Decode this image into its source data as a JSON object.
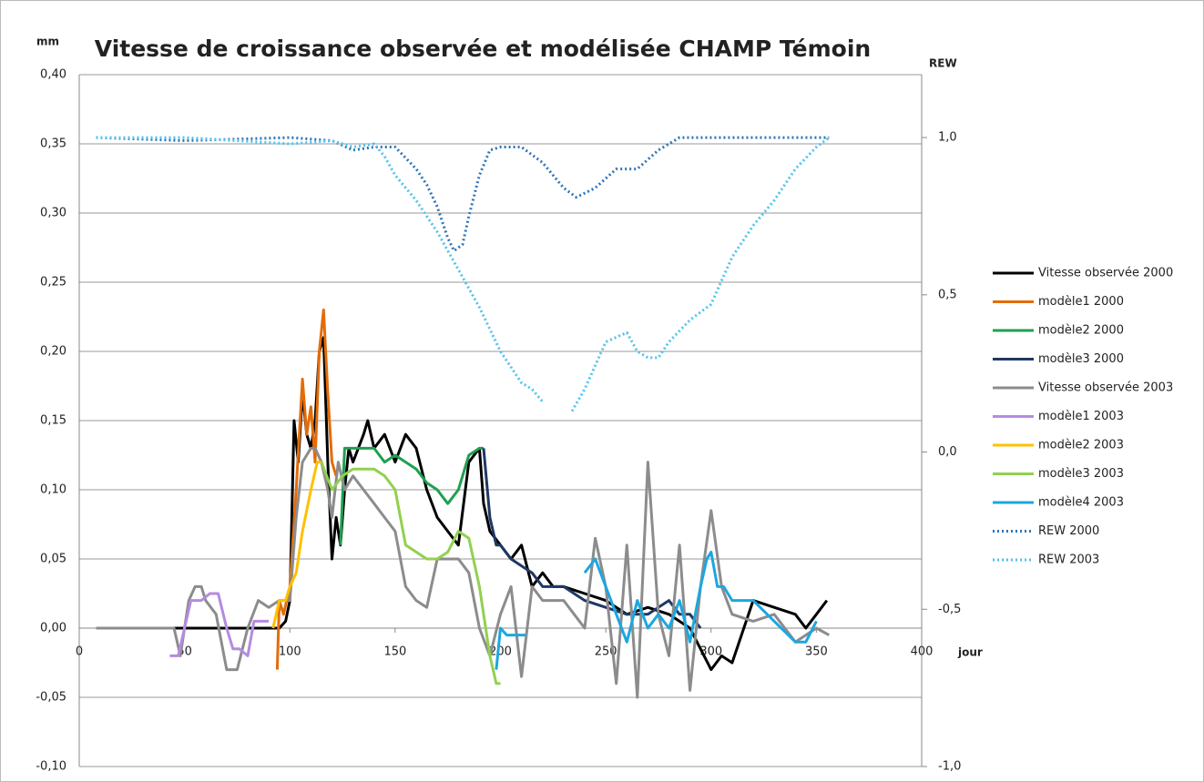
{
  "chart_data": {
    "type": "line",
    "title": "Vitesse de croissance observée et modélisée CHAMP Témoin",
    "y_label": "mm",
    "y2_label": "REW",
    "x_label": "jour",
    "xlim": [
      0,
      400
    ],
    "xticks": [
      0,
      50,
      100,
      150,
      200,
      250,
      300,
      350,
      400
    ],
    "ylim": [
      -0.1,
      0.4
    ],
    "yticks": [
      {
        "value": -0.1,
        "label": "-0,10"
      },
      {
        "value": -0.05,
        "label": "-0,05"
      },
      {
        "value": 0,
        "label": "0,00"
      },
      {
        "value": 0.05,
        "label": "0,05"
      },
      {
        "value": 0.1,
        "label": "0,10"
      },
      {
        "value": 0.15,
        "label": "0,15"
      },
      {
        "value": 0.2,
        "label": "0,20"
      },
      {
        "value": 0.25,
        "label": "0,25"
      },
      {
        "value": 0.3,
        "label": "0,30"
      },
      {
        "value": 0.35,
        "label": "0,35"
      },
      {
        "value": 0.4,
        "label": "0,40"
      }
    ],
    "y2lim": [
      -1,
      1.2
    ],
    "y2ticks": [
      {
        "value": -1,
        "label": "-1,0"
      },
      {
        "value": -0.5,
        "label": "-0,5"
      },
      {
        "value": 0,
        "label": "0,0"
      },
      {
        "value": 0.5,
        "label": "0,5"
      },
      {
        "value": 1,
        "label": "1,0"
      }
    ],
    "grid": true,
    "legend": "right",
    "series": [
      {
        "name": "Vitesse observée 2000",
        "color": "#000000",
        "x": [
          8,
          40,
          60,
          90,
          95,
          98,
          100,
          102,
          104,
          106,
          108,
          110,
          112,
          114,
          116,
          118,
          120,
          122,
          124,
          126,
          128,
          130,
          135,
          137,
          140,
          145,
          150,
          155,
          160,
          165,
          170,
          175,
          180,
          185,
          190,
          192,
          195,
          200,
          205,
          210,
          215,
          220,
          225,
          230,
          240,
          250,
          260,
          270,
          280,
          290,
          300,
          305,
          310,
          320,
          330,
          340,
          345,
          350,
          355
        ],
        "values": [
          0,
          0,
          0,
          0,
          0,
          0.005,
          0.02,
          0.15,
          0.12,
          0.17,
          0.14,
          0.13,
          0.15,
          0.2,
          0.21,
          0.12,
          0.05,
          0.08,
          0.06,
          0.1,
          0.13,
          0.12,
          0.14,
          0.15,
          0.13,
          0.14,
          0.12,
          0.14,
          0.13,
          0.1,
          0.08,
          0.07,
          0.06,
          0.12,
          0.13,
          0.09,
          0.07,
          0.06,
          0.05,
          0.06,
          0.03,
          0.04,
          0.03,
          0.03,
          0.025,
          0.02,
          0.01,
          0.015,
          0.01,
          0.0,
          -0.03,
          -0.02,
          -0.025,
          0.02,
          0.015,
          0.01,
          0.0,
          0.01,
          0.02
        ]
      },
      {
        "name": "modèle1 2000",
        "color": "#e36c0a",
        "x": [
          94,
          95,
          97,
          100,
          103,
          106,
          108,
          110,
          112,
          114,
          116,
          118,
          120,
          122
        ],
        "values": [
          -0.03,
          0.02,
          0.01,
          0.03,
          0.1,
          0.18,
          0.14,
          0.16,
          0.12,
          0.2,
          0.23,
          0.17,
          0.12,
          0.11
        ]
      },
      {
        "name": "modèle2 2000",
        "color": "#1fa04f",
        "x": [
          124,
          126,
          130,
          135,
          140,
          145,
          150,
          155,
          160,
          165,
          170,
          175,
          180,
          185,
          190,
          192
        ],
        "values": [
          0.06,
          0.13,
          0.13,
          0.13,
          0.13,
          0.12,
          0.125,
          0.12,
          0.115,
          0.105,
          0.1,
          0.09,
          0.1,
          0.125,
          0.13,
          0.13
        ]
      },
      {
        "name": "modèle3 2000",
        "color": "#1f3864",
        "x": [
          192,
          195,
          198,
          200,
          205,
          210,
          215,
          220,
          225,
          230,
          240,
          250,
          260,
          270,
          280,
          285,
          290,
          295
        ],
        "values": [
          0.13,
          0.08,
          0.06,
          0.06,
          0.05,
          0.045,
          0.04,
          0.03,
          0.03,
          0.03,
          0.02,
          0.015,
          0.01,
          0.01,
          0.02,
          0.01,
          0.01,
          0.0
        ]
      },
      {
        "name": "Vitesse observée 2003",
        "color": "#8c8c8c",
        "x": [
          8,
          40,
          45,
          48,
          50,
          52,
          55,
          58,
          60,
          65,
          70,
          75,
          80,
          85,
          90,
          95,
          100,
          103,
          106,
          110,
          112,
          115,
          118,
          120,
          123,
          126,
          130,
          135,
          140,
          145,
          150,
          155,
          160,
          165,
          170,
          175,
          180,
          185,
          190,
          195,
          200,
          205,
          210,
          215,
          220,
          230,
          240,
          245,
          250,
          255,
          260,
          265,
          270,
          275,
          280,
          285,
          290,
          295,
          300,
          305,
          310,
          320,
          330,
          340,
          350,
          356
        ],
        "values": [
          0,
          0,
          0,
          -0.02,
          0,
          0.02,
          0.03,
          0.03,
          0.02,
          0.01,
          -0.03,
          -0.03,
          0,
          0.02,
          0.015,
          0.02,
          0.02,
          0.08,
          0.12,
          0.13,
          0.13,
          0.12,
          0.1,
          0.08,
          0.12,
          0.1,
          0.11,
          0.1,
          0.09,
          0.08,
          0.07,
          0.03,
          0.02,
          0.015,
          0.05,
          0.05,
          0.05,
          0.04,
          0.0,
          -0.02,
          0.01,
          0.03,
          -0.035,
          0.03,
          0.02,
          0.02,
          0.0,
          0.065,
          0.03,
          -0.04,
          0.06,
          -0.05,
          0.12,
          0.01,
          -0.02,
          0.06,
          -0.045,
          0.03,
          0.085,
          0.03,
          0.01,
          0.005,
          0.01,
          -0.01,
          0.0,
          -0.005
        ]
      },
      {
        "name": "modèle1 2003",
        "color": "#b58be0",
        "x": [
          43,
          47,
          50,
          53,
          55,
          58,
          62,
          66,
          70,
          73,
          76,
          80,
          83,
          90
        ],
        "values": [
          -0.02,
          -0.02,
          0.0,
          0.02,
          0.02,
          0.02,
          0.025,
          0.025,
          0.0,
          -0.015,
          -0.015,
          -0.02,
          0.005,
          0.005
        ]
      },
      {
        "name": "modèle2 2003",
        "color": "#ffc000",
        "x": [
          92,
          95,
          98,
          100,
          103,
          106,
          110,
          113,
          115
        ],
        "values": [
          0.0,
          0.02,
          0.02,
          0.03,
          0.04,
          0.07,
          0.1,
          0.12,
          0.12
        ]
      },
      {
        "name": "modèle3 2003",
        "color": "#92d050",
        "x": [
          115,
          120,
          125,
          130,
          135,
          140,
          145,
          150,
          155,
          160,
          165,
          170,
          175,
          180,
          185,
          190,
          195,
          198,
          200
        ],
        "values": [
          0.12,
          0.1,
          0.11,
          0.115,
          0.115,
          0.115,
          0.11,
          0.1,
          0.06,
          0.055,
          0.05,
          0.05,
          0.055,
          0.07,
          0.065,
          0.03,
          -0.02,
          -0.04,
          -0.04
        ]
      },
      {
        "name": "modèle4 2003",
        "color": "#1ba7e0",
        "x": [
          198,
          200,
          203,
          206,
          212,
          225,
          240,
          245,
          250,
          255,
          260,
          265,
          270,
          275,
          280,
          285,
          290,
          295,
          298,
          300,
          303,
          306,
          310,
          320,
          330,
          340,
          345,
          350
        ],
        "values": [
          -0.03,
          0.0,
          -0.005,
          -0.005,
          -0.005,
          null,
          0.04,
          0.05,
          0.03,
          0.01,
          -0.01,
          0.02,
          0.0,
          0.01,
          0.0,
          0.02,
          -0.01,
          0.03,
          0.05,
          0.055,
          0.03,
          0.03,
          0.02,
          0.02,
          0.005,
          -0.01,
          -0.01,
          0.005
        ]
      },
      {
        "name": "REW 2000",
        "color": "#2e75b6",
        "axis": "y2",
        "line_style": "dotted",
        "x": [
          8,
          50,
          100,
          120,
          130,
          140,
          150,
          160,
          165,
          170,
          175,
          178,
          182,
          185,
          190,
          195,
          200,
          210,
          220,
          230,
          236,
          245,
          255,
          265,
          275,
          285,
          300,
          320,
          340,
          356
        ],
        "values": [
          1.0,
          0.99,
          1.0,
          0.99,
          0.96,
          0.97,
          0.97,
          0.9,
          0.85,
          0.78,
          0.68,
          0.64,
          0.66,
          0.75,
          0.88,
          0.96,
          0.97,
          0.97,
          0.92,
          0.84,
          0.81,
          0.84,
          0.9,
          0.9,
          0.96,
          1.0,
          1.0,
          1.0,
          1.0,
          1.0
        ]
      },
      {
        "name": "REW 2003",
        "color": "#4fc3ee",
        "axis": "y2",
        "line_style": "dotted",
        "x": [
          8,
          50,
          100,
          120,
          130,
          140,
          145,
          150,
          160,
          170,
          180,
          190,
          200,
          210,
          215,
          220,
          227,
          234,
          240,
          250,
          260,
          265,
          270,
          275,
          280,
          290,
          300,
          310,
          320,
          330,
          340,
          350,
          356
        ],
        "values": [
          1.0,
          1.0,
          0.98,
          0.99,
          0.97,
          0.98,
          0.94,
          0.88,
          0.8,
          0.7,
          0.58,
          0.46,
          0.32,
          0.22,
          0.2,
          0.16,
          null,
          0.13,
          0.2,
          0.35,
          0.38,
          0.32,
          0.3,
          0.3,
          0.35,
          0.42,
          0.47,
          0.62,
          0.72,
          0.8,
          0.9,
          0.97,
          1.0
        ]
      }
    ]
  }
}
